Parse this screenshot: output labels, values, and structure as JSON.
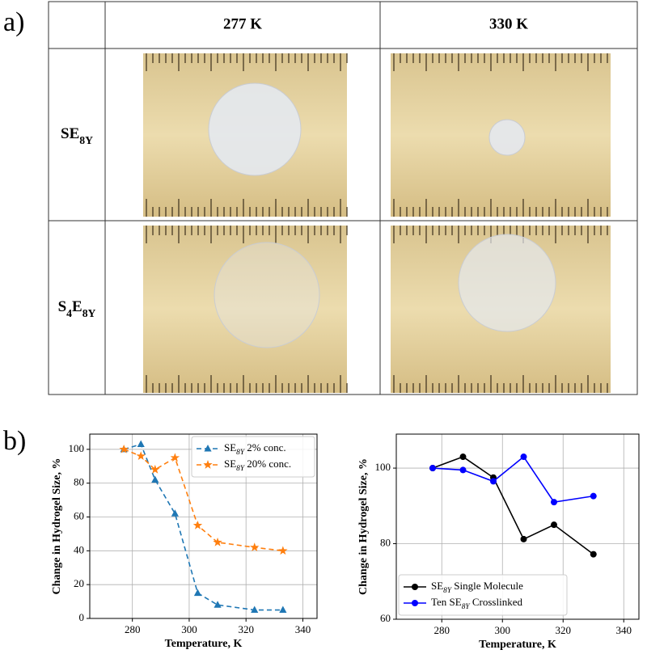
{
  "panel_a": {
    "label": "a)",
    "columns": [
      "277 K",
      "330 K"
    ],
    "rows": [
      [
        "SE",
        "8Y"
      ],
      [
        "S",
        "4",
        "E",
        "8Y"
      ]
    ]
  },
  "panel_b": {
    "label": "b)"
  },
  "chart_data": [
    {
      "type": "line",
      "x_label": "Temperature, K",
      "y_label": "Change in Hydrogel Size, %",
      "x": [
        277,
        283,
        288,
        295,
        303,
        310,
        323,
        333
      ],
      "series": [
        {
          "name": [
            "SE",
            "8Y",
            " 2% conc."
          ],
          "color": "#1f77b4",
          "linestyle": "dashed",
          "marker": "triangle",
          "values": [
            100,
            103,
            82,
            62,
            15,
            8,
            5,
            5
          ]
        },
        {
          "name": [
            "SE",
            "8Y",
            " 20% conc."
          ],
          "color": "#ff7f0e",
          "linestyle": "dashed",
          "marker": "star",
          "values": [
            100,
            96,
            88,
            95,
            55,
            45,
            42,
            40
          ]
        }
      ],
      "xlim": [
        265,
        345
      ],
      "xticks": [
        280,
        300,
        320,
        340
      ],
      "ylim": [
        0,
        109
      ],
      "yticks": [
        0,
        20,
        40,
        60,
        80,
        100
      ],
      "grid": true,
      "legend": "upper right"
    },
    {
      "type": "line",
      "x_label": "Temperature, K",
      "y_label": "Change in Hydrogel Size, %",
      "x": [
        277,
        287,
        297,
        307,
        317,
        330
      ],
      "series": [
        {
          "name": [
            "SE",
            "8Y",
            " Single Molecule"
          ],
          "color": "#000000",
          "linestyle": "solid",
          "marker": "circle",
          "values": [
            100,
            103,
            97.5,
            81.2,
            85,
            77.2
          ]
        },
        {
          "name": [
            "Ten SE",
            "8Y",
            " Crosslinked"
          ],
          "color": "#0000ff",
          "linestyle": "solid",
          "marker": "circle",
          "values": [
            100,
            99.5,
            96.5,
            103,
            91,
            92.6
          ]
        }
      ],
      "xlim": [
        265,
        345
      ],
      "xticks": [
        280,
        300,
        320,
        340
      ],
      "ylim": [
        60,
        109
      ],
      "yticks": [
        60,
        80,
        100
      ],
      "grid": true,
      "legend": "lower left"
    }
  ]
}
